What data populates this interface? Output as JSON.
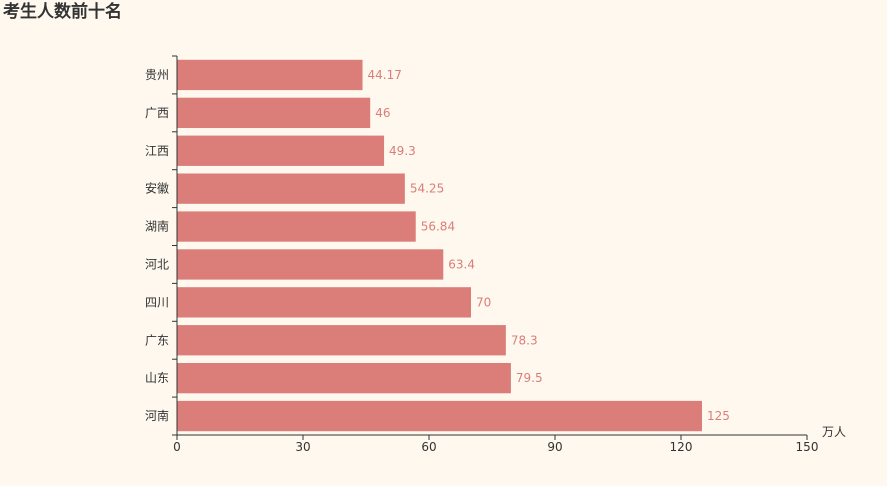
{
  "title": "考生人数前十名",
  "chart_data": {
    "type": "bar",
    "orientation": "horizontal",
    "title": "考生人数前十名",
    "categories": [
      "河南",
      "山东",
      "广东",
      "四川",
      "河北",
      "湖南",
      "安徽",
      "江西",
      "广西",
      "贵州"
    ],
    "values": [
      125,
      79.5,
      78.3,
      70,
      63.4,
      56.84,
      54.25,
      49.3,
      46,
      44.17
    ],
    "xlabel": "万人",
    "ylabel": "",
    "xlim": [
      0,
      150
    ],
    "xticks": [
      0,
      30,
      60,
      90,
      120,
      150
    ],
    "grid": false,
    "bar_color": "#db7e79",
    "label_color": "#db7e79",
    "background": "#fef8ef"
  }
}
